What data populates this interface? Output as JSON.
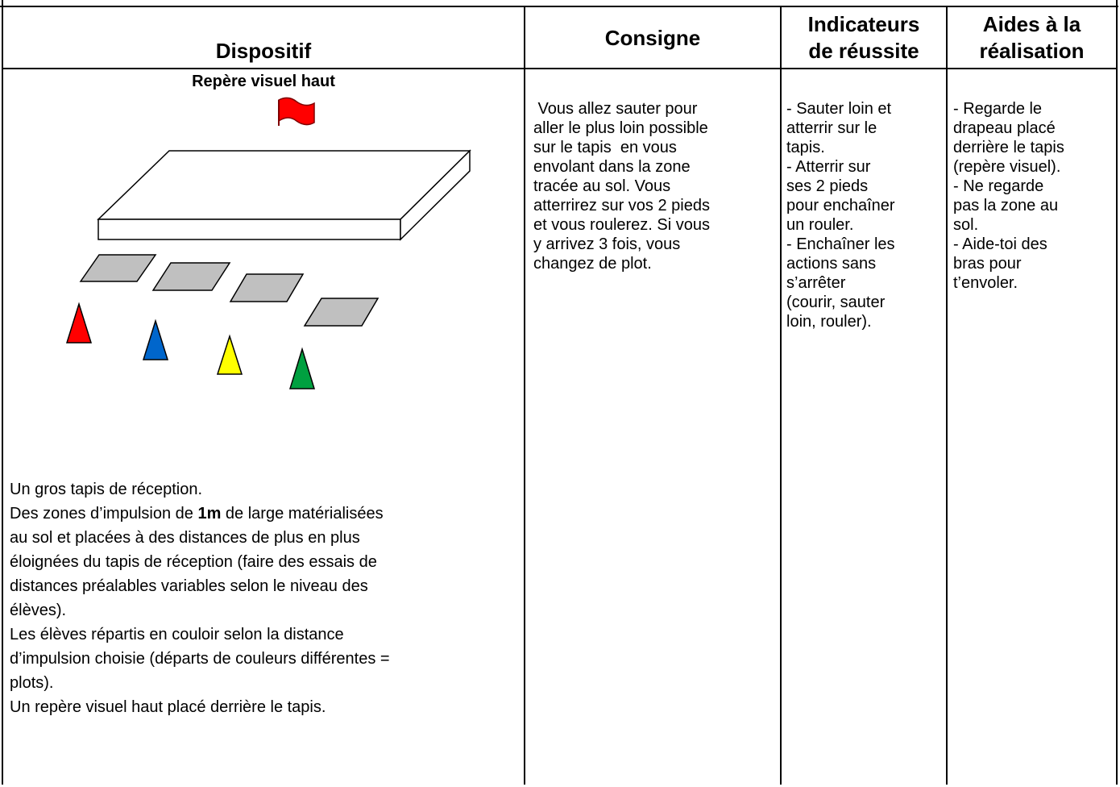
{
  "table": {
    "headers": {
      "dispositif": "Dispositif",
      "consigne": "Consigne",
      "indicateurs": [
        "Indicateurs",
        "de réussite"
      ],
      "aides": [
        "Aides à la",
        "réalisation"
      ]
    },
    "dispositif": {
      "diagram_label": "Repère visuel haut",
      "description": [
        "Un gros tapis de réception.",
        {
          "before": "Des zones d’impulsion de ",
          "bold": "1m",
          "after": " de large matérialisées"
        },
        "au sol et placées à des distances de plus en plus",
        "éloignées du tapis de réception (faire des essais de",
        "distances préalables variables selon le niveau des",
        "élèves).",
        "Les élèves répartis en couloir selon la distance",
        "d’impulsion choisie (départs de couleurs différentes =",
        "plots).",
        "Un repère visuel haut placé derrière le tapis."
      ]
    },
    "consigne": [
      " Vous allez sauter pour",
      "aller le plus loin possible",
      "sur le tapis  en vous",
      "envolant dans la zone",
      "tracée au sol. Vous",
      "atterrirez sur vos 2 pieds",
      "et vous roulerez. Si vous",
      "y arrivez 3 fois, vous",
      "changez de plot."
    ],
    "indicateurs": [
      "- Sauter loin et",
      "atterrir sur le",
      "tapis.",
      "- Atterrir sur",
      "ses 2 pieds",
      "pour enchaîner",
      "un rouler.",
      "- Enchaîner les",
      "actions sans",
      "s’arrêter",
      "(courir, sauter",
      "loin, rouler)."
    ],
    "aides": [
      "- Regarde le",
      "drapeau placé",
      "derrière le tapis",
      "(repère visuel).",
      "- Ne regarde",
      "pas la zone au",
      "sol.",
      "- Aide-toi des",
      "bras pour",
      "t’envoler."
    ]
  }
}
